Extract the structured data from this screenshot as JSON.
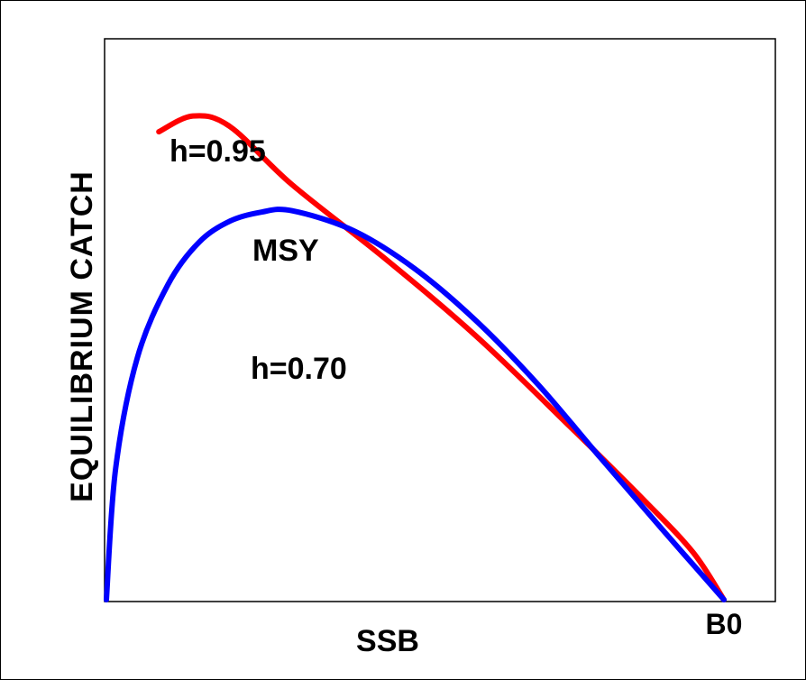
{
  "chart_data": {
    "type": "line",
    "xlabel": "SSB",
    "ylabel": "EQUILIBRIUM CATCH",
    "x_end_label": "B0",
    "xlim": [
      0,
      1
    ],
    "ylim": [
      0,
      1
    ],
    "grid": false,
    "annotations": [
      "h=0.95",
      "MSY",
      "h=0.70"
    ],
    "series": [
      {
        "name": "h=0.95",
        "color": "#ff0000",
        "x": [
          0.085,
          0.14,
          0.2,
          0.3,
          0.45,
          0.6,
          0.75,
          0.87,
          0.95,
          1.0
        ],
        "y": [
          0.89,
          0.92,
          0.9,
          0.79,
          0.65,
          0.5,
          0.33,
          0.19,
          0.09,
          0.0
        ]
      },
      {
        "name": "h=0.70",
        "color": "#0000ff",
        "x": [
          0.0,
          0.015,
          0.05,
          0.1,
          0.15,
          0.2,
          0.25,
          0.3,
          0.4,
          0.5,
          0.6,
          0.7,
          0.8,
          0.9,
          1.0
        ],
        "y": [
          0.0,
          0.25,
          0.46,
          0.6,
          0.68,
          0.72,
          0.737,
          0.74,
          0.702,
          0.629,
          0.529,
          0.408,
          0.27,
          0.134,
          0.0
        ]
      }
    ]
  }
}
